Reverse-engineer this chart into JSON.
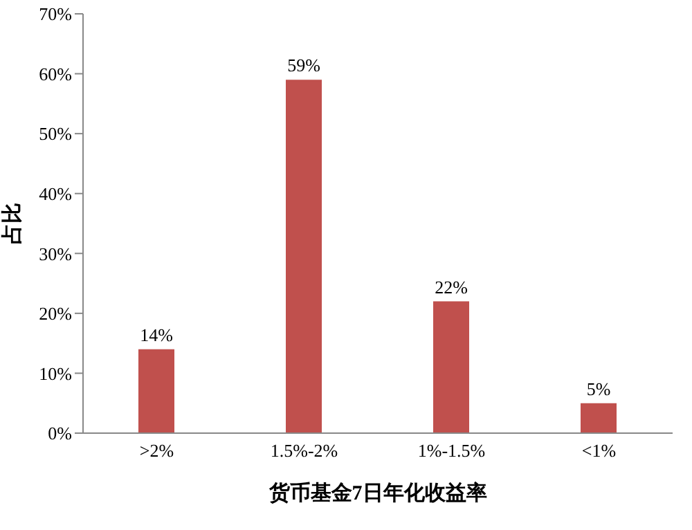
{
  "chart_data": {
    "type": "bar",
    "xlabel": "货币基金7日年化收益率",
    "ylabel": "占比",
    "categories": [
      ">2%",
      "1.5%-2%",
      "1%-1.5%",
      "<1%"
    ],
    "values": [
      14,
      59,
      22,
      5
    ],
    "value_labels": [
      "14%",
      "59%",
      "22%",
      "5%"
    ],
    "color": "#c0504d",
    "ylim": [
      0,
      70
    ],
    "yticks": [
      {
        "value": 0,
        "label": "0%"
      },
      {
        "value": 10,
        "label": "10%"
      },
      {
        "value": 20,
        "label": "20%"
      },
      {
        "value": 30,
        "label": "30%"
      },
      {
        "value": 40,
        "label": "40%"
      },
      {
        "value": 50,
        "label": "50%"
      },
      {
        "value": 60,
        "label": "60%"
      },
      {
        "value": 70,
        "label": "70%"
      }
    ]
  }
}
